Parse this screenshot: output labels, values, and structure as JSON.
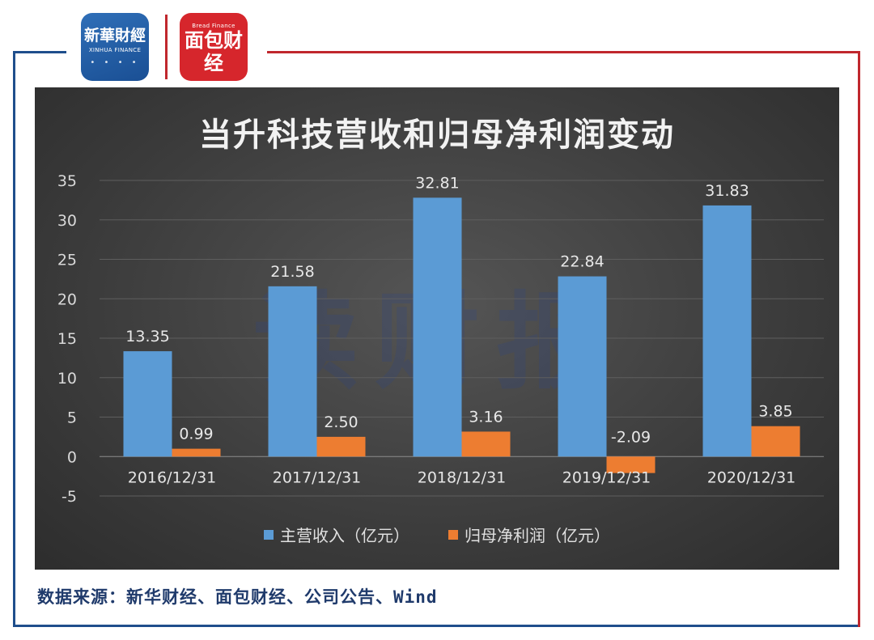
{
  "header": {
    "logo_xinhua": {
      "text_cn": "新華財經",
      "text_en": "XINHUA FINANCE"
    },
    "logo_mianbao": {
      "text_cn": "面包财经",
      "text_en": "Bread Finance"
    }
  },
  "watermark": "读财报",
  "colors": {
    "revenue": "#5b9bd5",
    "net_profit": "#ed7d31",
    "frame_blue": "#1f4e8c",
    "frame_red": "#c0272d"
  },
  "chart_data": {
    "type": "bar",
    "title": "当升科技营收和归母净利润变动",
    "categories": [
      "2016/12/31",
      "2017/12/31",
      "2018/12/31",
      "2019/12/31",
      "2020/12/31"
    ],
    "series": [
      {
        "name": "主营收入（亿元）",
        "values": [
          13.35,
          21.58,
          32.81,
          22.84,
          31.83
        ],
        "labels": [
          "13.35",
          "21.58",
          "32.81",
          "22.84",
          "31.83"
        ]
      },
      {
        "name": "归母净利润（亿元）",
        "values": [
          0.99,
          2.5,
          3.16,
          -2.09,
          3.85
        ],
        "labels": [
          "0.99",
          "2.50",
          "3.16",
          "-2.09",
          "3.85"
        ]
      }
    ],
    "yticks": [
      35,
      30,
      25,
      20,
      15,
      10,
      5,
      0,
      -5
    ],
    "ylim": [
      -5,
      35
    ],
    "legend_position": "bottom",
    "grid": true
  },
  "source": "数据来源：新华财经、面包财经、公司公告、Wind"
}
